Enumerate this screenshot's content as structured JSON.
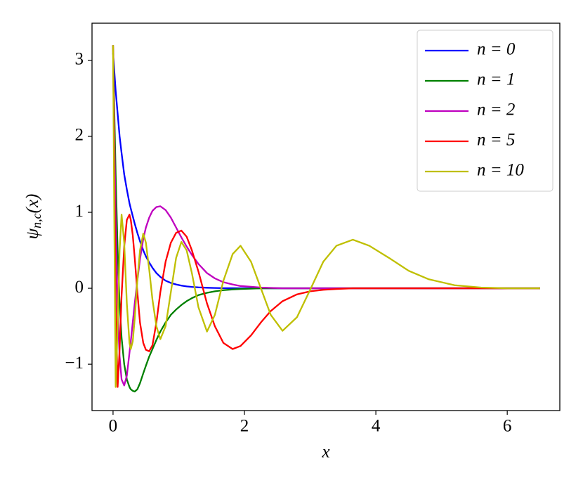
{
  "chart_data": {
    "type": "line",
    "x_label": "x",
    "y_label": {
      "symbol": "ψ",
      "subscript": "n,c",
      "argument": "(x)"
    },
    "x": [
      0,
      0.02,
      0.04,
      0.07,
      0.1,
      0.13,
      0.17,
      0.21,
      0.25,
      0.27,
      0.3,
      0.33,
      0.37,
      0.41,
      0.46,
      0.5,
      0.55,
      0.6,
      0.66,
      0.72,
      0.8,
      0.88,
      0.96,
      1.04,
      1.12,
      1.2,
      1.3,
      1.43,
      1.55,
      1.68,
      1.82,
      1.94,
      2.1,
      2.25,
      2.4,
      2.58,
      2.8,
      3.0,
      3.2,
      3.4,
      3.65,
      3.9,
      4.2,
      4.5,
      4.8,
      5.2,
      5.6,
      6.0,
      6.5
    ],
    "series": [
      {
        "name": "n = 0",
        "color": "#0000ff",
        "values": [
          3.1,
          2.85,
          2.6,
          2.3,
          2.0,
          1.78,
          1.5,
          1.3,
          1.12,
          1.05,
          0.95,
          0.85,
          0.73,
          0.62,
          0.5,
          0.42,
          0.34,
          0.27,
          0.2,
          0.15,
          0.1,
          0.07,
          0.05,
          0.035,
          0.025,
          0.018,
          0.012,
          0.007,
          0.004,
          0.002,
          0.001,
          0,
          0,
          0,
          0,
          0,
          0,
          0,
          0,
          0,
          0,
          0,
          0,
          0,
          0,
          0,
          0,
          0,
          0
        ]
      },
      {
        "name": "n = 1",
        "color": "#008000",
        "values": [
          3.2,
          2.3,
          1.5,
          0.5,
          -0.2,
          -0.65,
          -1.0,
          -1.2,
          -1.3,
          -1.33,
          -1.35,
          -1.36,
          -1.33,
          -1.25,
          -1.12,
          -1.02,
          -0.9,
          -0.8,
          -0.68,
          -0.57,
          -0.45,
          -0.35,
          -0.28,
          -0.22,
          -0.17,
          -0.13,
          -0.09,
          -0.06,
          -0.04,
          -0.025,
          -0.015,
          -0.01,
          -0.005,
          0,
          0,
          0,
          0,
          0,
          0,
          0,
          0,
          0,
          0,
          0,
          0,
          0,
          0,
          0,
          0
        ]
      },
      {
        "name": "n = 2",
        "color": "#bf00bf",
        "values": [
          3.2,
          2.0,
          0.9,
          -0.3,
          -0.9,
          -1.2,
          -1.28,
          -1.15,
          -0.85,
          -0.7,
          -0.45,
          -0.2,
          0.1,
          0.38,
          0.65,
          0.8,
          0.93,
          1.02,
          1.07,
          1.08,
          1.03,
          0.93,
          0.8,
          0.67,
          0.55,
          0.44,
          0.32,
          0.2,
          0.13,
          0.08,
          0.05,
          0.03,
          0.02,
          0.01,
          0.005,
          0,
          0,
          0,
          0,
          0,
          0,
          0,
          0,
          0,
          0,
          0,
          0,
          0,
          0
        ]
      },
      {
        "name": "n = 5",
        "color": "#ff0000",
        "values": [
          3.2,
          1.5,
          -0.2,
          -1.3,
          -0.8,
          -0.1,
          0.55,
          0.9,
          0.97,
          0.9,
          0.7,
          0.4,
          -0.05,
          -0.45,
          -0.72,
          -0.81,
          -0.83,
          -0.75,
          -0.45,
          -0.05,
          0.35,
          0.6,
          0.73,
          0.76,
          0.68,
          0.5,
          0.22,
          -0.2,
          -0.5,
          -0.72,
          -0.8,
          -0.76,
          -0.62,
          -0.45,
          -0.3,
          -0.17,
          -0.08,
          -0.04,
          -0.02,
          -0.01,
          0,
          0,
          0,
          0,
          0,
          0,
          0,
          0,
          0
        ]
      },
      {
        "name": "n = 10",
        "color": "#bfbf00",
        "values": [
          3.2,
          0.8,
          -1.3,
          -0.5,
          0.5,
          0.97,
          0.6,
          -0.2,
          -0.72,
          -0.8,
          -0.7,
          -0.4,
          0.1,
          0.5,
          0.72,
          0.6,
          0.25,
          -0.15,
          -0.5,
          -0.67,
          -0.5,
          -0.05,
          0.4,
          0.61,
          0.5,
          0.2,
          -0.25,
          -0.57,
          -0.35,
          0.1,
          0.45,
          0.56,
          0.35,
          0.0,
          -0.35,
          -0.56,
          -0.38,
          -0.02,
          0.35,
          0.56,
          0.64,
          0.56,
          0.4,
          0.23,
          0.12,
          0.04,
          0.01,
          0,
          0
        ]
      }
    ],
    "xlim": [
      -0.32,
      6.8
    ],
    "ylim": [
      -1.61,
      3.49
    ],
    "xticks": [
      0,
      2,
      4,
      6
    ],
    "yticks": [
      {
        "value": -1,
        "label": "−1"
      },
      0,
      1,
      2,
      3
    ],
    "grid": false,
    "legend": "upper right"
  }
}
